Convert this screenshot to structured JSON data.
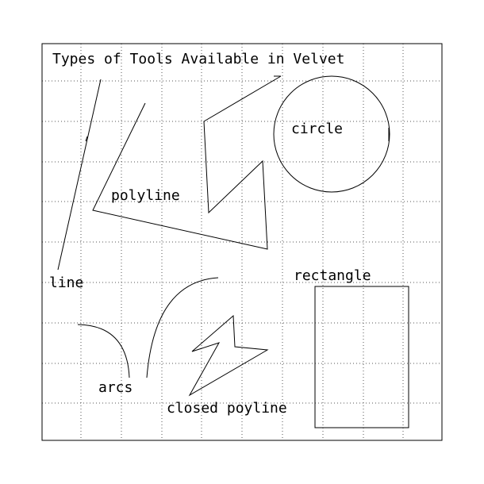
{
  "title": "Types of Tools Available in Velvet",
  "labels": {
    "line": "line",
    "polyline": "polyline",
    "circle": "circle",
    "rectangle": "rectangle",
    "arcs": "arcs",
    "closed_polyline": "closed poyline"
  },
  "colors": {
    "background": "#ffffff",
    "ink": "#000000",
    "grid": "#555555"
  }
}
